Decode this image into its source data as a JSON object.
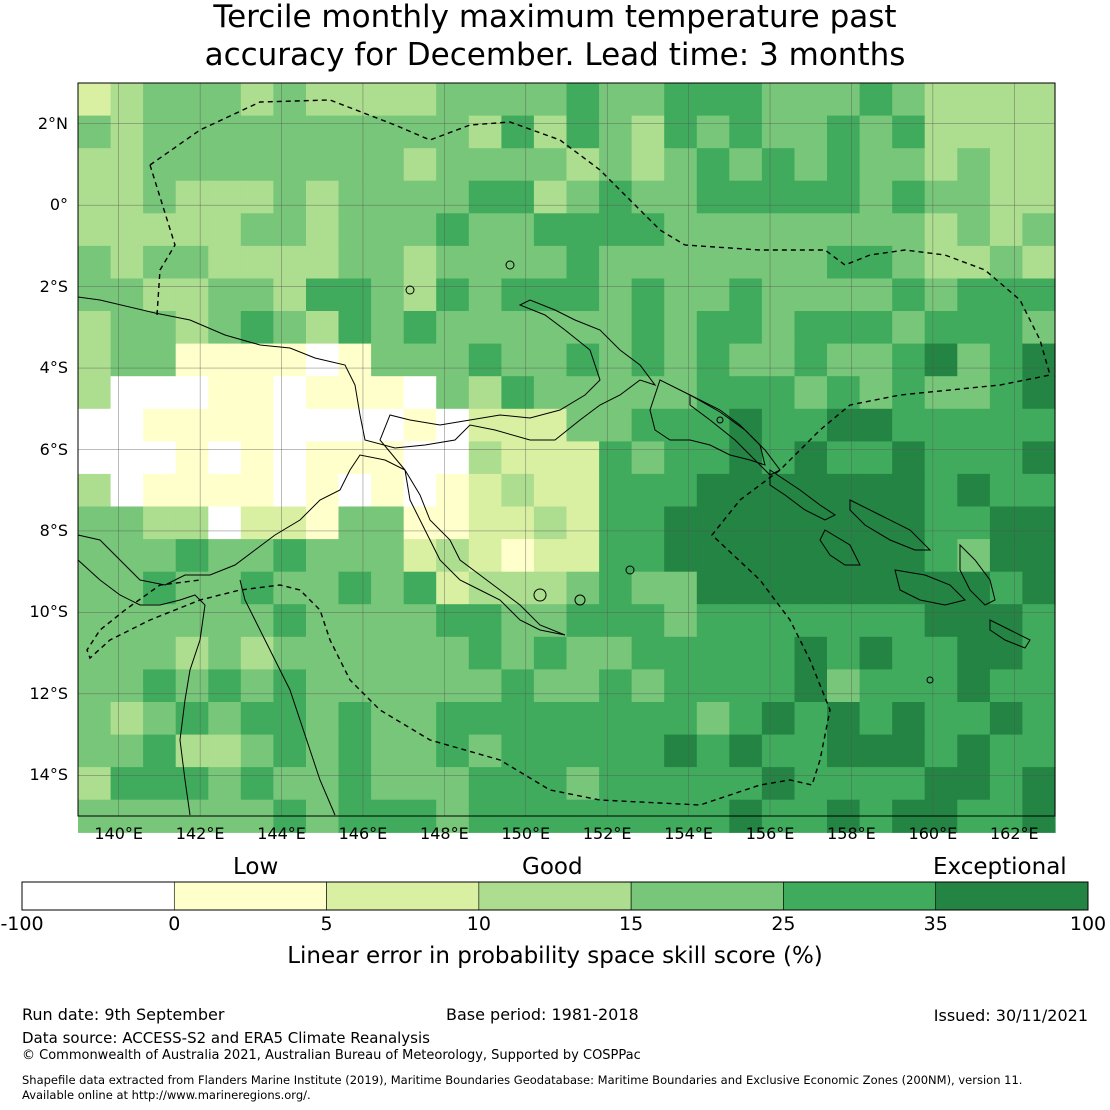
{
  "title": {
    "line1": "Tercile monthly maximum temperature past",
    "line2": "accuracy for December. Lead time: 3 months"
  },
  "map": {
    "lat_labels": [
      "2°N",
      "0°",
      "2°S",
      "4°S",
      "6°S",
      "8°S",
      "10°S",
      "12°S",
      "14°S"
    ],
    "lon_labels": [
      "140°E",
      "142°E",
      "144°E",
      "146°E",
      "148°E",
      "150°E",
      "152°E",
      "154°E",
      "156°E",
      "158°E",
      "160°E",
      "162°E"
    ],
    "lat_values": [
      2,
      0,
      -2,
      -4,
      -6,
      -8,
      -10,
      -12,
      -14
    ],
    "lon_values": [
      140,
      142,
      144,
      146,
      148,
      150,
      152,
      154,
      156,
      158,
      160,
      162
    ],
    "extent": {
      "lon_min": 139,
      "lon_max": 163,
      "lat_min": -15,
      "lat_max": 3
    },
    "grid": true
  },
  "legend": {
    "categories": [
      "Low",
      "Good",
      "Exceptional"
    ],
    "tick_labels": [
      "-100",
      "0",
      "5",
      "10",
      "15",
      "25",
      "35",
      "100"
    ],
    "colors": [
      "#ffffff",
      "#ffffcc",
      "#d9f0a3",
      "#addd8e",
      "#78c679",
      "#41ab5d",
      "#238443"
    ],
    "title": "Linear error in probability space skill score (%)"
  },
  "footer": {
    "run_date": "Run date: 9th September",
    "base_period": "Base period: 1981-2018",
    "issued": "Issued: 30/11/2021",
    "data_source": "Data source: ACCESS-S2 and ERA5 Climate Reanalysis",
    "copyright": "© Commonwealth of Australia 2021, Australian Bureau of Meteorology, Supported by COSPPac",
    "shapefile_line1": "Shapefile data extracted from Flanders Marine Institute (2019), Maritime Boundaries Geodatabase: Maritime Boundaries and Exclusive Economic Zones (200NM), version 11.",
    "shapefile_line2": "Available online at http://www.marineregions.org/."
  }
}
